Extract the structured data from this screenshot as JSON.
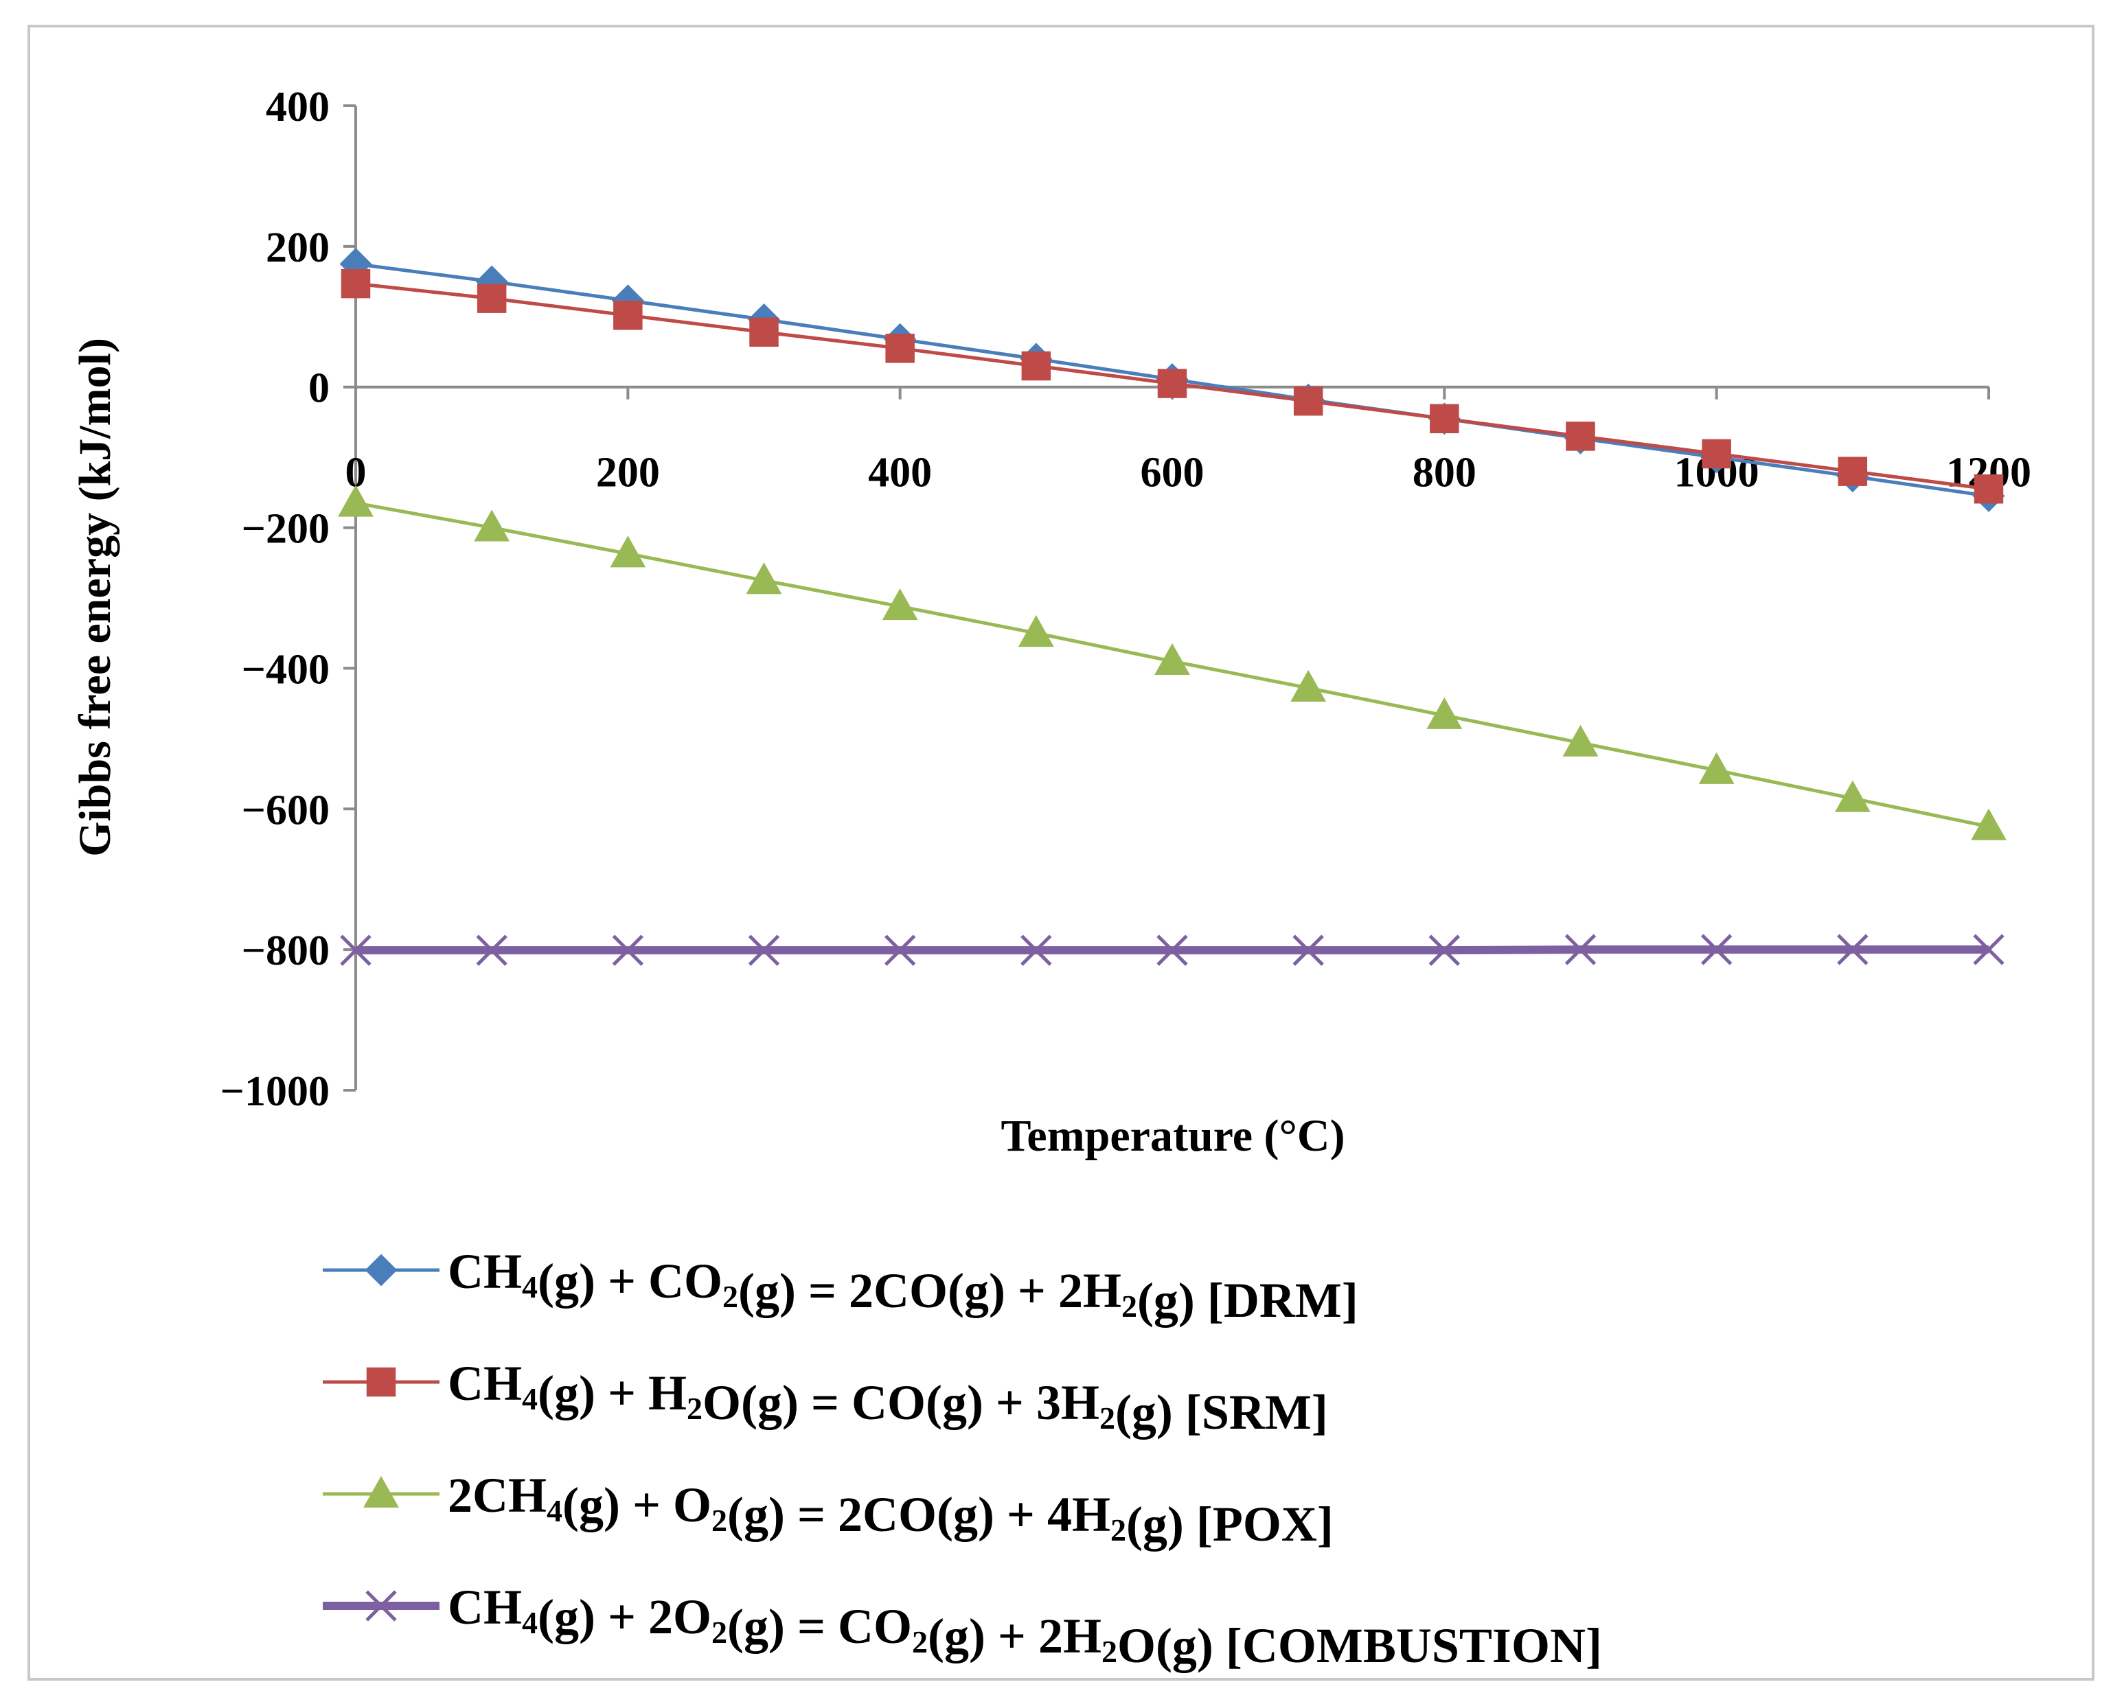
{
  "chart_data": {
    "type": "line",
    "title": "",
    "xlabel": "Temperature (°C)",
    "ylabel": "Gibbs free energy (kJ/mol)",
    "ylim": [
      -1000,
      400
    ],
    "xlim": [
      0,
      1200
    ],
    "yticks": [
      400,
      200,
      0,
      -200,
      -400,
      -600,
      -800,
      -1000
    ],
    "ytick_labels": [
      "400",
      "200",
      "0",
      "−200",
      "−400",
      "−600",
      "−800",
      "−1000"
    ],
    "xticks": [
      0,
      200,
      400,
      600,
      800,
      1000,
      1200
    ],
    "xtick_labels": [
      "0",
      "200",
      "400",
      "600",
      "800",
      "1000",
      "1200"
    ],
    "grid": false,
    "legend_position": "bottom",
    "x": [
      0,
      100,
      200,
      300,
      400,
      500,
      600,
      700,
      800,
      900,
      1000,
      1100,
      1200
    ],
    "series": [
      {
        "name": "CH4(g) + CO2(g) = 2CO(g) + 2H2(g) [DRM]",
        "label_parts": [
          [
            "CH",
            false
          ],
          [
            "4",
            true
          ],
          [
            "(g) + CO",
            false
          ],
          [
            "2",
            true
          ],
          [
            "(g) = 2CO(g) + 2H",
            false
          ],
          [
            "2",
            true
          ],
          [
            "(g) [DRM]",
            false
          ]
        ],
        "color": "#4a7ebb",
        "marker": "diamond",
        "values": [
          175,
          150,
          123,
          96,
          68,
          40,
          11,
          -18,
          -45,
          -73,
          -100,
          -127,
          -155
        ]
      },
      {
        "name": "CH4(g) + H2O(g) = CO(g) + 3H2(g) [SRM]",
        "label_parts": [
          [
            "CH",
            false
          ],
          [
            "4",
            true
          ],
          [
            "(g) + H",
            false
          ],
          [
            "2",
            true
          ],
          [
            "O(g) = CO(g) + 3H",
            false
          ],
          [
            "2",
            true
          ],
          [
            "(g) [SRM]",
            false
          ]
        ],
        "color": "#be4b48",
        "marker": "square",
        "values": [
          147,
          126,
          102,
          78,
          55,
          30,
          5,
          -20,
          -45,
          -70,
          -95,
          -120,
          -145
        ]
      },
      {
        "name": "2CH4(g) + O2(g) = 2CO(g) + 4H2(g) [POX]",
        "label_parts": [
          [
            "2CH",
            false
          ],
          [
            "4",
            true
          ],
          [
            "(g) + O",
            false
          ],
          [
            "2",
            true
          ],
          [
            "(g) = 2CO(g) + 4H",
            false
          ],
          [
            "2",
            true
          ],
          [
            "(g) [POX]",
            false
          ]
        ],
        "color": "#98b954",
        "marker": "triangle",
        "values": [
          -165,
          -200,
          -237,
          -275,
          -312,
          -350,
          -390,
          -428,
          -467,
          -506,
          -545,
          -585,
          -625
        ]
      },
      {
        "name": "CH4(g) + 2O2(g) = CO2(g) + 2H2O(g) [COMBUSTION]",
        "label_parts": [
          [
            "CH",
            false
          ],
          [
            "4",
            true
          ],
          [
            "(g) + 2O",
            false
          ],
          [
            "2",
            true
          ],
          [
            "(g) = CO",
            false
          ],
          [
            "2",
            true
          ],
          [
            "(g) + 2H",
            false
          ],
          [
            "2",
            true
          ],
          [
            "O(g) [COMBUSTION]",
            false
          ]
        ],
        "color": "#7d60a0",
        "marker": "x",
        "values": [
          -801,
          -801,
          -801,
          -801,
          -801,
          -801,
          -801,
          -801,
          -801,
          -800,
          -800,
          -800,
          -800
        ]
      }
    ]
  }
}
